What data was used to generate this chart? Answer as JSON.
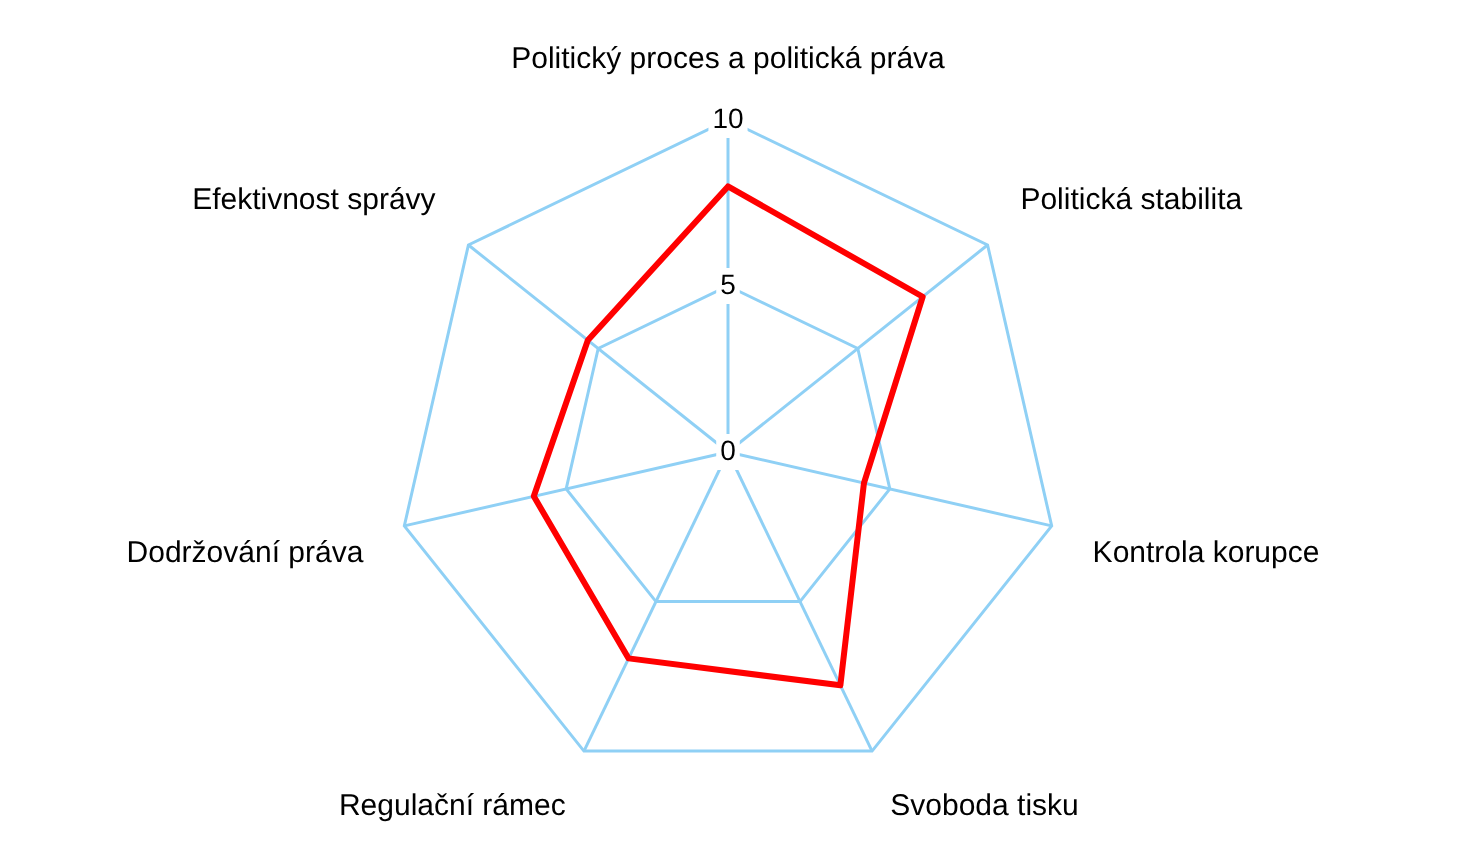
{
  "chart_data": {
    "type": "radar",
    "categories": [
      "Politický proces a politická práva",
      "Politická stabilita",
      "Kontrola korupce",
      "Svoboda tisku",
      "Regulační rámec",
      "Dodržování práva",
      "Efektivnost správy"
    ],
    "series": [
      {
        "color": "#ff0000",
        "values": [
          8.0,
          7.5,
          4.2,
          7.8,
          6.9,
          6.0,
          5.4
        ]
      }
    ],
    "ylim": [
      0,
      10
    ],
    "yticks": [
      0,
      5,
      10
    ],
    "grid": true,
    "legend": false,
    "marker": "none"
  }
}
